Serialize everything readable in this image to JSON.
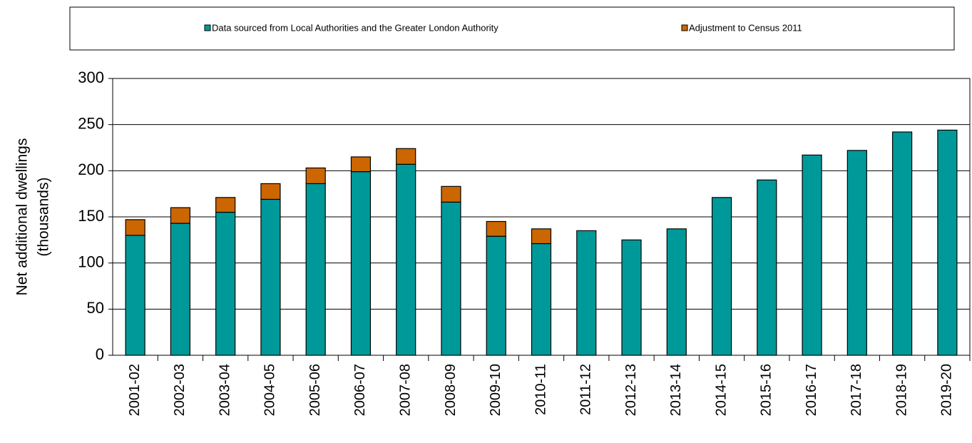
{
  "chart_data": {
    "type": "stacked_bar",
    "y_label": [
      "Net additional dwellings",
      "(thousands)"
    ],
    "categories": [
      "2001-02",
      "2002-03",
      "2003-04",
      "2004-05",
      "2005-06",
      "2006-07",
      "2007-08",
      "2008-09",
      "2009-10",
      "2010-11",
      "2011-12",
      "2012-13",
      "2013-14",
      "2014-15",
      "2015-16",
      "2016-17",
      "2017-18",
      "2018-19",
      "2019-20"
    ],
    "series": [
      {
        "name": "Data sourced from Local Authorities and the Greater London Authority",
        "color": "#009999",
        "values": [
          130,
          143,
          155,
          169,
          186,
          199,
          207,
          166,
          129,
          121,
          135,
          125,
          137,
          171,
          190,
          217,
          222,
          242,
          244
        ]
      },
      {
        "name": "Adjustment to Census 2011",
        "color": "#cc6600",
        "values": [
          17,
          17,
          16,
          17,
          17,
          16,
          17,
          17,
          16,
          16,
          null,
          null,
          null,
          null,
          null,
          null,
          null,
          null,
          null
        ]
      }
    ],
    "ylim": [
      0,
      300
    ],
    "yticks": [
      0,
      50,
      100,
      150,
      200,
      250,
      300
    ],
    "grid": true
  }
}
